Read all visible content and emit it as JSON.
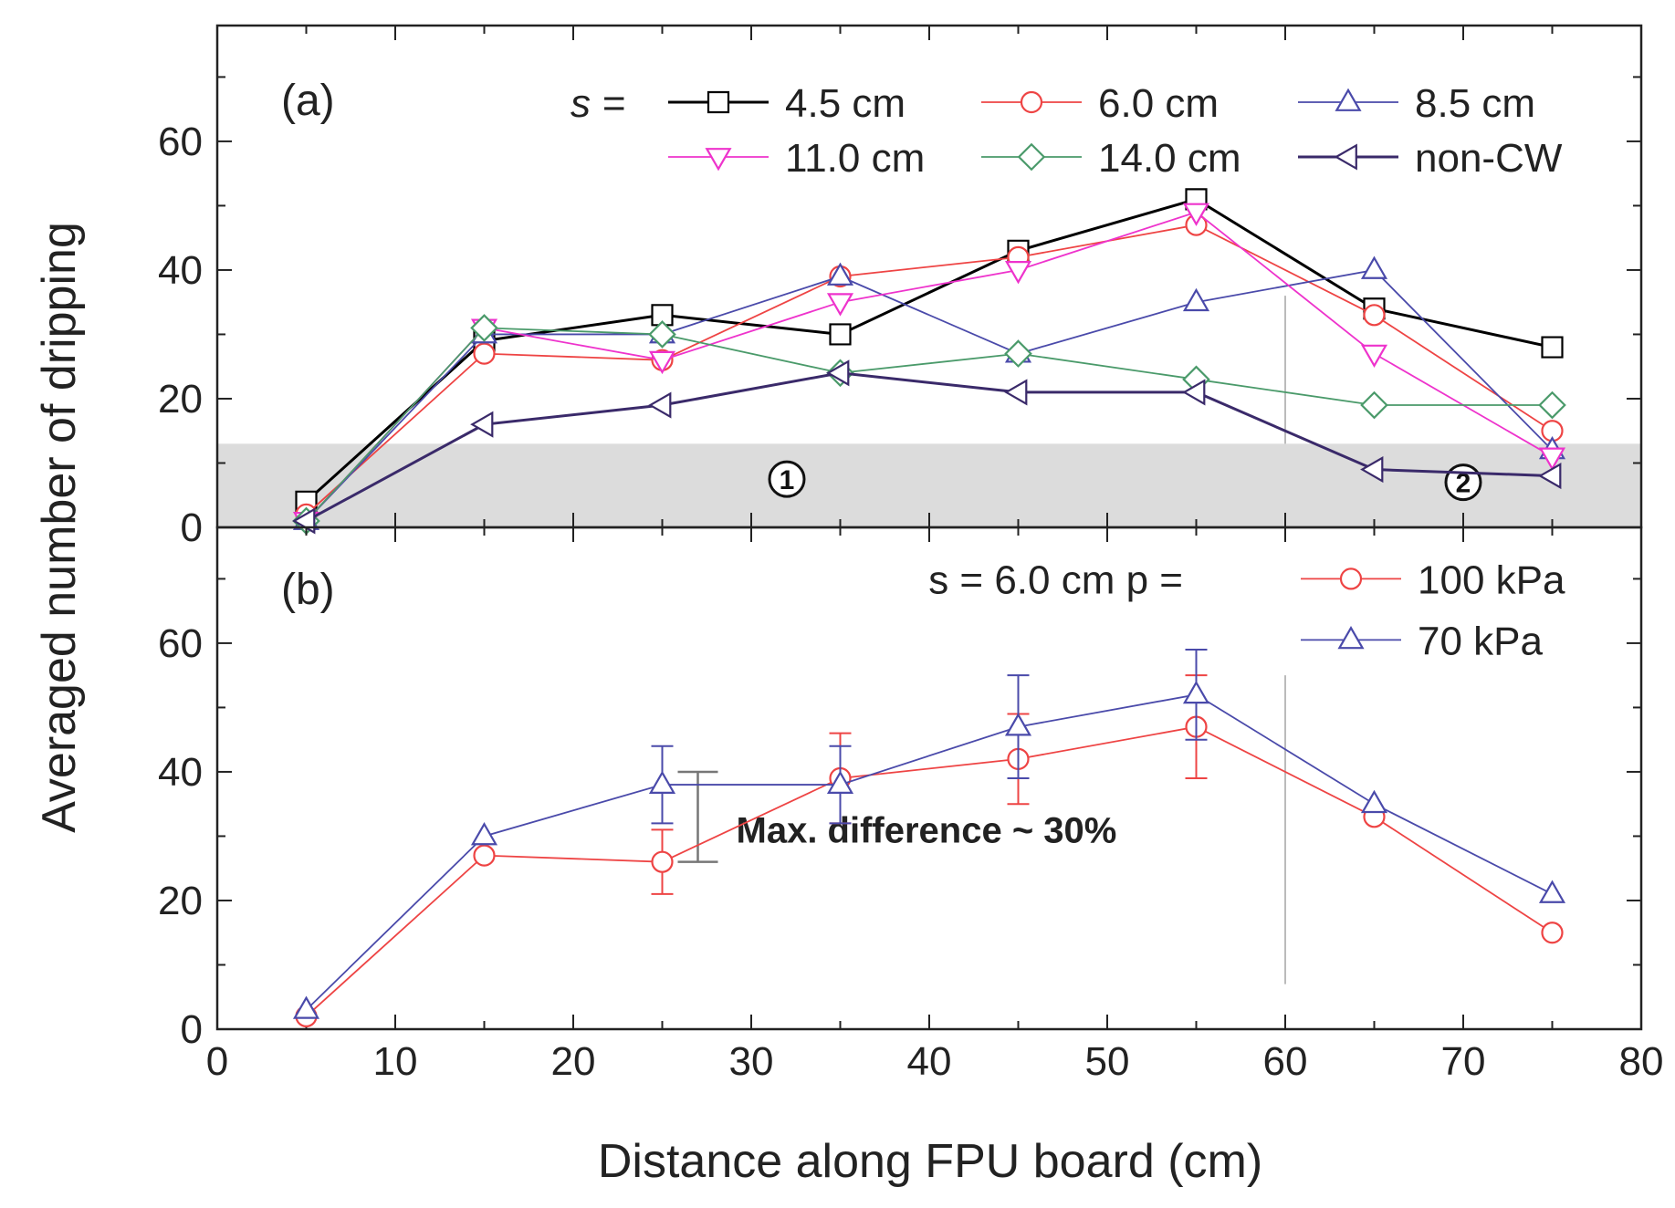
{
  "chart_data": {
    "type": "line",
    "xlabel": "Distance along FPU board (cm)",
    "ylabel": "Averaged number of dripping",
    "xlim": [
      0,
      80
    ],
    "x_ticks": [
      "0",
      "10",
      "20",
      "30",
      "40",
      "50",
      "60",
      "70",
      "80"
    ],
    "grid": false,
    "panels": [
      {
        "label": "(a)",
        "ylim": [
          0,
          78
        ],
        "y_ticks": [
          "0",
          "20",
          "40",
          "60"
        ],
        "legend_prefix": "s =",
        "legend_position": "top-right",
        "shaded_band": [
          0,
          13
        ],
        "vertical_line_x": 60,
        "region_markers": [
          {
            "text": "1",
            "x": 32,
            "y": 7.5
          },
          {
            "text": "2",
            "x": 70,
            "y": 7
          }
        ],
        "series": [
          {
            "name": "4.5 cm",
            "color": "#000000",
            "marker": "square",
            "x": [
              5,
              15,
              25,
              35,
              45,
              55,
              65,
              75
            ],
            "values": [
              4,
              29,
              33,
              30,
              43,
              51,
              34,
              28
            ]
          },
          {
            "name": "6.0 cm",
            "color": "#ee4444",
            "marker": "circle",
            "x": [
              5,
              15,
              25,
              35,
              45,
              55,
              65,
              75
            ],
            "values": [
              2,
              27,
              26,
              39,
              42,
              47,
              33,
              15
            ]
          },
          {
            "name": "8.5 cm",
            "color": "#4a4aaa",
            "marker": "triangle-up",
            "x": [
              5,
              15,
              25,
              35,
              45,
              55,
              65,
              75
            ],
            "values": [
              1,
              30,
              30,
              39,
              27,
              35,
              40,
              12
            ]
          },
          {
            "name": "11.0 cm",
            "color": "#ee33cc",
            "marker": "triangle-down",
            "x": [
              5,
              15,
              25,
              35,
              45,
              55,
              65,
              75
            ],
            "values": [
              1,
              31,
              26,
              35,
              40,
              49,
              27,
              11
            ]
          },
          {
            "name": "14.0 cm",
            "color": "#4a9a6a",
            "marker": "diamond",
            "x": [
              5,
              15,
              25,
              35,
              45,
              55,
              65,
              75
            ],
            "values": [
              1,
              31,
              30,
              24,
              27,
              23,
              19,
              19
            ]
          },
          {
            "name": "non-CW",
            "color": "#3a2a6a",
            "marker": "triangle-left",
            "x": [
              5,
              15,
              25,
              35,
              45,
              55,
              65,
              75
            ],
            "values": [
              1,
              16,
              19,
              24,
              21,
              21,
              9,
              8
            ]
          }
        ]
      },
      {
        "label": "(b)",
        "ylim": [
          0,
          78
        ],
        "y_ticks": [
          "0",
          "20",
          "40",
          "60"
        ],
        "legend_prefix": "s = 6.0 cm   p =",
        "legend_position": "top-right",
        "vertical_line_x": 60,
        "annotation": {
          "text": "Max. difference ~ 30%",
          "x": 27,
          "y_low": 26,
          "y_high": 40
        },
        "series": [
          {
            "name": "100 kPa",
            "color": "#ee4444",
            "marker": "circle",
            "x": [
              5,
              15,
              25,
              35,
              45,
              55,
              65,
              75
            ],
            "values": [
              2,
              27,
              26,
              39,
              42,
              47,
              33,
              15
            ],
            "error_low": [
              null,
              null,
              5,
              7,
              7,
              8,
              null,
              null
            ],
            "error_high": [
              null,
              null,
              5,
              7,
              7,
              8,
              null,
              null
            ]
          },
          {
            "name": "70 kPa",
            "color": "#4a4aaa",
            "marker": "triangle-up",
            "x": [
              5,
              15,
              25,
              35,
              45,
              55,
              65,
              75
            ],
            "values": [
              3,
              30,
              38,
              38,
              47,
              52,
              35,
              21
            ],
            "error_low": [
              null,
              null,
              6,
              6,
              8,
              7,
              null,
              null
            ],
            "error_high": [
              null,
              null,
              6,
              6,
              8,
              7,
              null,
              null
            ]
          }
        ]
      }
    ]
  }
}
